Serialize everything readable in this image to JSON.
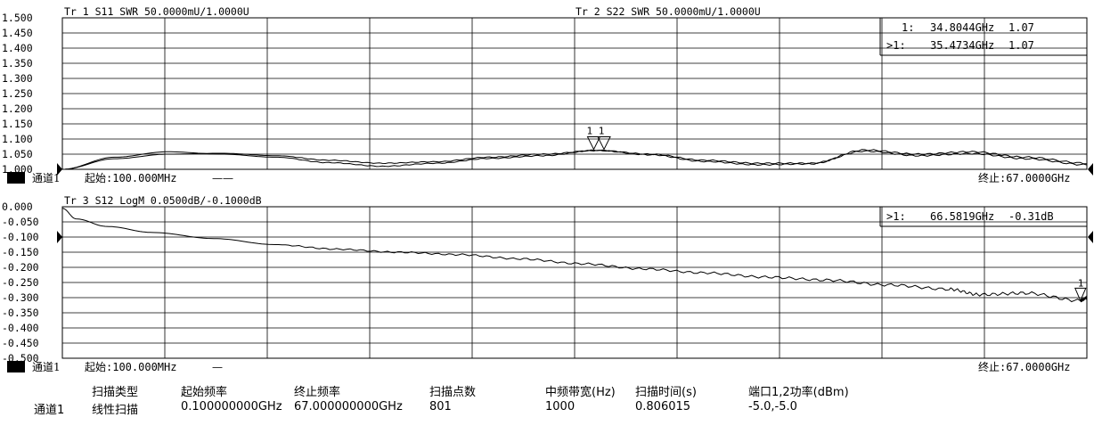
{
  "chart_data": [
    {
      "type": "line",
      "traces": [
        {
          "label": "Tr 1  S11 SWR 50.0000mU/1.0000U",
          "name": "S11",
          "format": "SWR"
        },
        {
          "label": "Tr 2  S22 SWR 50.0000mU/1.0000U",
          "name": "S22",
          "format": "SWR"
        }
      ],
      "ylim": [
        1.0,
        1.5
      ],
      "xlim": [
        0.1,
        67.0
      ],
      "yticks": [
        "1.500",
        "1.450",
        "1.400",
        "1.350",
        "1.300",
        "1.250",
        "1.200",
        "1.150",
        "1.100",
        "1.050",
        "1.000"
      ],
      "grid": true,
      "markers": [
        {
          "label": "1:",
          "freq": "34.8044GHz",
          "value": "1.07"
        },
        {
          "label": ">1:",
          "freq": "35.4734GHz",
          "value": "1.07"
        }
      ],
      "marker_glyph": "1 1",
      "channel_badge": "1",
      "channel_label": "通道1",
      "start_label": "起始:100.000MHz",
      "start_suffix": "——",
      "stop_label": "终止:67.0000GHz",
      "series": [
        {
          "name": "S11",
          "x": [
            0.1,
            3.5,
            7.0,
            10.5,
            14.0,
            17.5,
            21.0,
            24.5,
            28.0,
            31.5,
            35.0,
            38.5,
            42.0,
            45.5,
            49.0,
            52.5,
            56.0,
            59.5,
            63.0,
            67.0
          ],
          "y": [
            1.0,
            1.04,
            1.058,
            1.05,
            1.04,
            1.022,
            1.01,
            1.02,
            1.036,
            1.045,
            1.063,
            1.05,
            1.03,
            1.02,
            1.02,
            1.06,
            1.045,
            1.052,
            1.035,
            1.015
          ]
        },
        {
          "name": "S22",
          "x": [
            0.1,
            3.5,
            7.0,
            10.5,
            14.0,
            17.5,
            21.0,
            24.5,
            28.0,
            31.5,
            35.0,
            38.5,
            42.0,
            45.5,
            49.0,
            52.5,
            56.0,
            59.5,
            63.0,
            67.0
          ],
          "y": [
            1.0,
            1.035,
            1.05,
            1.053,
            1.045,
            1.03,
            1.02,
            1.025,
            1.04,
            1.05,
            1.062,
            1.048,
            1.026,
            1.015,
            1.018,
            1.064,
            1.05,
            1.058,
            1.04,
            1.02
          ]
        }
      ]
    },
    {
      "type": "line",
      "traces": [
        {
          "label": "Tr 3  S12 LogM 0.0500dB/-0.1000dB",
          "name": "S12",
          "format": "LogM"
        }
      ],
      "ylim": [
        -0.5,
        0.0
      ],
      "xlim": [
        0.1,
        67.0
      ],
      "yticks": [
        "0.000",
        "-0.050",
        "-0.100",
        "-0.150",
        "-0.200",
        "-0.250",
        "-0.300",
        "-0.350",
        "-0.400",
        "-0.450",
        "-0.500"
      ],
      "grid": true,
      "markers": [
        {
          "label": ">1:",
          "freq": "66.5819GHz",
          "value": "-0.31dB"
        }
      ],
      "marker_glyph": "1",
      "channel_badge": "3",
      "channel_label": "通道1",
      "start_label": "起始:100.000MHz",
      "start_suffix": "—",
      "stop_label": "终止:67.0000GHz",
      "series": [
        {
          "name": "S12",
          "x": [
            0.1,
            1.0,
            3.0,
            6.0,
            10.0,
            14.0,
            18.0,
            22.0,
            26.0,
            30.0,
            34.0,
            38.0,
            42.0,
            46.0,
            50.0,
            54.0,
            58.0,
            60.0,
            63.0,
            66.6,
            67.0
          ],
          "y": [
            -0.005,
            -0.04,
            -0.065,
            -0.085,
            -0.105,
            -0.125,
            -0.14,
            -0.15,
            -0.158,
            -0.172,
            -0.188,
            -0.205,
            -0.218,
            -0.232,
            -0.242,
            -0.258,
            -0.272,
            -0.29,
            -0.285,
            -0.31,
            -0.3
          ]
        }
      ]
    }
  ],
  "table": {
    "headers": [
      "扫描类型",
      "起始频率",
      "终止频率",
      "扫描点数",
      "中频带宽(Hz)",
      "扫描时间(s)",
      "端口1,2功率(dBm)"
    ],
    "row_label": "通道1",
    "row": [
      "线性扫描",
      "0.100000000GHz",
      "67.000000000GHz",
      "801",
      "1000",
      "0.806015",
      "-5.0,-5.0"
    ]
  }
}
